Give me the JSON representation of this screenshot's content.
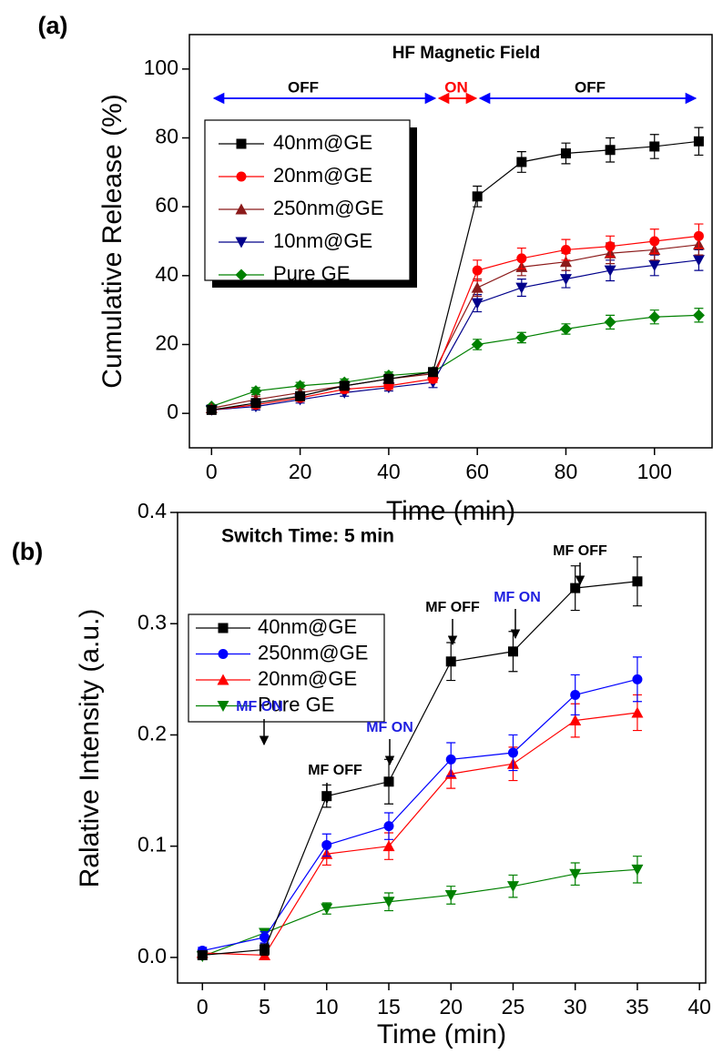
{
  "chart_data": [
    {
      "type": "line",
      "panel_label": "(a)",
      "x_label": "Time (min)",
      "y_label": "Cumulative Release (%)",
      "xlim": [
        -5,
        113
      ],
      "ylim": [
        -10,
        110
      ],
      "xticks": [
        0,
        20,
        40,
        60,
        80,
        100
      ],
      "yticks": [
        0,
        20,
        40,
        60,
        80,
        100
      ],
      "x": [
        0,
        10,
        20,
        30,
        40,
        50,
        60,
        70,
        80,
        90,
        100,
        110
      ],
      "series": [
        {
          "name": "40nm@GE",
          "color": "#000000",
          "marker": "square",
          "values": [
            1,
            3,
            5,
            8,
            10,
            12,
            63,
            73,
            75.5,
            76.5,
            77.5,
            79
          ],
          "errors": [
            0.5,
            1,
            1,
            1,
            1,
            1,
            3,
            3,
            3,
            3.5,
            3.5,
            4
          ]
        },
        {
          "name": "20nm@GE",
          "color": "#ff0000",
          "marker": "circle",
          "values": [
            1,
            2.5,
            4.5,
            7,
            8,
            10,
            41.5,
            45,
            47.5,
            48.5,
            50,
            51.5
          ],
          "errors": [
            0.5,
            1,
            1,
            1,
            1,
            1,
            3,
            3,
            3,
            3,
            3.5,
            3.5
          ]
        },
        {
          "name": "250nm@GE",
          "color": "#8b1a1a",
          "marker": "triangle-up",
          "values": [
            1.5,
            4,
            6,
            8,
            10,
            11.5,
            36.5,
            42.5,
            44,
            46.5,
            47.5,
            49
          ],
          "errors": [
            0.5,
            1,
            1,
            1,
            1,
            1,
            2.5,
            2.5,
            2.5,
            3,
            3,
            3
          ]
        },
        {
          "name": "10nm@GE",
          "color": "#00008b",
          "marker": "triangle-down",
          "values": [
            1,
            2,
            4,
            6,
            7.5,
            9,
            32,
            36.5,
            39,
            41.5,
            43,
            44.5
          ],
          "errors": [
            0.5,
            1,
            1,
            1,
            1,
            1.5,
            2.5,
            2.5,
            2.5,
            3,
            3,
            3
          ]
        },
        {
          "name": "Pure GE",
          "color": "#008000",
          "marker": "diamond",
          "values": [
            2,
            6.5,
            8,
            9,
            11,
            12,
            20,
            22,
            24.5,
            26.5,
            28,
            28.5
          ],
          "errors": [
            0.5,
            1,
            1,
            1,
            1,
            1,
            1.5,
            1.5,
            1.5,
            2,
            2,
            2
          ]
        }
      ],
      "annotations": [
        {
          "text": "HF Magnetic Field",
          "color": "#000000"
        },
        {
          "text": "OFF",
          "color": "#000000",
          "arrow_color": "#0000ff"
        },
        {
          "text": "ON",
          "color": "#ff0000",
          "arrow_color": "#ff0000"
        },
        {
          "text": "OFF",
          "color": "#000000",
          "arrow_color": "#0000ff"
        }
      ]
    },
    {
      "type": "line",
      "panel_label": "(b)",
      "x_label": "Time (min)",
      "y_label": "Ralative Intensity (a.u.)",
      "xlim": [
        -2,
        40.5
      ],
      "ylim": [
        -0.023,
        0.4
      ],
      "xticks": [
        0,
        5,
        10,
        15,
        20,
        25,
        30,
        35,
        40
      ],
      "yticks": [
        {
          "value": 0,
          "label": "0.0"
        },
        0.1,
        0.2,
        0.3,
        0.4
      ],
      "x": [
        0,
        5,
        10,
        15,
        20,
        25,
        30,
        35
      ],
      "series": [
        {
          "name": "40nm@GE",
          "color": "#000000",
          "marker": "square",
          "values": [
            0.002,
            0.007,
            0.145,
            0.158,
            0.266,
            0.275,
            0.332,
            0.338
          ],
          "errors": [
            0.002,
            0.005,
            0.01,
            0.02,
            0.017,
            0.018,
            0.02,
            0.022
          ]
        },
        {
          "name": "250nm@GE",
          "color": "#0000ff",
          "marker": "circle",
          "values": [
            0.006,
            0.018,
            0.101,
            0.118,
            0.178,
            0.184,
            0.236,
            0.25
          ],
          "errors": [
            0.003,
            0.005,
            0.01,
            0.012,
            0.015,
            0.016,
            0.018,
            0.02
          ]
        },
        {
          "name": "20nm@GE",
          "color": "#ff0000",
          "marker": "triangle-up",
          "values": [
            0.004,
            0.002,
            0.093,
            0.1,
            0.165,
            0.174,
            0.213,
            0.22
          ],
          "errors": [
            0.002,
            0.004,
            0.01,
            0.012,
            0.013,
            0.015,
            0.015,
            0.016
          ]
        },
        {
          "name": "Pure GE",
          "color": "#008000",
          "marker": "triangle-down",
          "values": [
            0.001,
            0.022,
            0.044,
            0.05,
            0.056,
            0.064,
            0.075,
            0.079
          ],
          "errors": [
            0.003,
            0.004,
            0.005,
            0.008,
            0.008,
            0.01,
            0.01,
            0.012
          ]
        }
      ],
      "annotations": [
        {
          "text": "Switch Time: 5 min",
          "color": "#000000"
        },
        {
          "text": "MF ON",
          "color": "#2020e0"
        },
        {
          "text": "MF OFF",
          "color": "#000000"
        },
        {
          "text": "MF ON",
          "color": "#2020e0"
        },
        {
          "text": "MF OFF",
          "color": "#000000"
        },
        {
          "text": "MF ON",
          "color": "#2020e0"
        },
        {
          "text": "MF OFF",
          "color": "#000000"
        }
      ]
    }
  ]
}
